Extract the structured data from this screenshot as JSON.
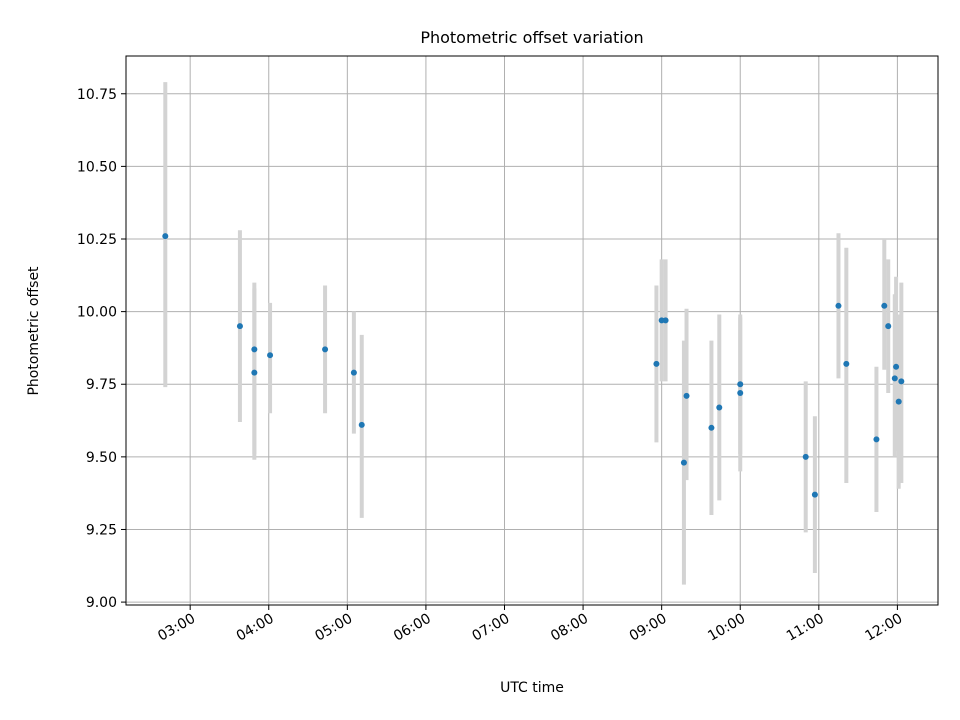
{
  "chart_data": {
    "type": "scatter",
    "title": "Photometric offset variation",
    "xlabel": "UTC time",
    "ylabel": "Photometric offset",
    "xlim": [
      "02:11",
      "12:31"
    ],
    "ylim": [
      8.99,
      10.88
    ],
    "xticks": [
      "03:00",
      "04:00",
      "05:00",
      "06:00",
      "07:00",
      "08:00",
      "09:00",
      "10:00",
      "11:00",
      "12:00"
    ],
    "yticks": [
      "9.00",
      "9.25",
      "9.50",
      "9.75",
      "10.00",
      "10.25",
      "10.50",
      "10.75"
    ],
    "grid": true,
    "colors": {
      "point": "#1f77b4",
      "errorbar": "#d3d3d3",
      "grid": "#b0b0b0"
    },
    "points": [
      {
        "x": "02:41",
        "y": 10.26,
        "ylow": 9.74,
        "yhigh": 10.79
      },
      {
        "x": "03:38",
        "y": 9.95,
        "ylow": 9.62,
        "yhigh": 10.28
      },
      {
        "x": "03:49",
        "y": 9.87,
        "ylow": 9.51,
        "yhigh": 10.1
      },
      {
        "x": "03:49",
        "y": 9.79,
        "ylow": 9.49,
        "yhigh": 10.08
      },
      {
        "x": "04:01",
        "y": 9.85,
        "ylow": 9.65,
        "yhigh": 10.03
      },
      {
        "x": "04:43",
        "y": 9.87,
        "ylow": 9.65,
        "yhigh": 10.09
      },
      {
        "x": "05:05",
        "y": 9.79,
        "ylow": 9.58,
        "yhigh": 10.0
      },
      {
        "x": "05:11",
        "y": 9.61,
        "ylow": 9.29,
        "yhigh": 9.92
      },
      {
        "x": "08:56",
        "y": 9.82,
        "ylow": 9.55,
        "yhigh": 10.09
      },
      {
        "x": "09:00",
        "y": 9.97,
        "ylow": 9.76,
        "yhigh": 10.18
      },
      {
        "x": "09:03",
        "y": 9.97,
        "ylow": 9.76,
        "yhigh": 10.18
      },
      {
        "x": "09:17",
        "y": 9.48,
        "ylow": 9.06,
        "yhigh": 9.9
      },
      {
        "x": "09:19",
        "y": 9.71,
        "ylow": 9.42,
        "yhigh": 10.01
      },
      {
        "x": "09:38",
        "y": 9.6,
        "ylow": 9.3,
        "yhigh": 9.9
      },
      {
        "x": "09:44",
        "y": 9.67,
        "ylow": 9.35,
        "yhigh": 9.99
      },
      {
        "x": "10:00",
        "y": 9.75,
        "ylow": 9.51,
        "yhigh": 9.98
      },
      {
        "x": "10:00",
        "y": 9.72,
        "ylow": 9.45,
        "yhigh": 9.99
      },
      {
        "x": "10:50",
        "y": 9.5,
        "ylow": 9.24,
        "yhigh": 9.76
      },
      {
        "x": "10:57",
        "y": 9.37,
        "ylow": 9.1,
        "yhigh": 9.64
      },
      {
        "x": "11:15",
        "y": 10.02,
        "ylow": 9.77,
        "yhigh": 10.27
      },
      {
        "x": "11:21",
        "y": 9.82,
        "ylow": 9.41,
        "yhigh": 10.22
      },
      {
        "x": "11:44",
        "y": 9.56,
        "ylow": 9.31,
        "yhigh": 9.81
      },
      {
        "x": "11:50",
        "y": 10.02,
        "ylow": 9.8,
        "yhigh": 10.25
      },
      {
        "x": "11:53",
        "y": 9.95,
        "ylow": 9.72,
        "yhigh": 10.18
      },
      {
        "x": "11:58",
        "y": 9.77,
        "ylow": 9.5,
        "yhigh": 10.06
      },
      {
        "x": "11:59",
        "y": 9.81,
        "ylow": 9.52,
        "yhigh": 10.12
      },
      {
        "x": "12:01",
        "y": 9.69,
        "ylow": 9.39,
        "yhigh": 9.99
      },
      {
        "x": "12:03",
        "y": 9.76,
        "ylow": 9.41,
        "yhigh": 10.1
      }
    ]
  }
}
